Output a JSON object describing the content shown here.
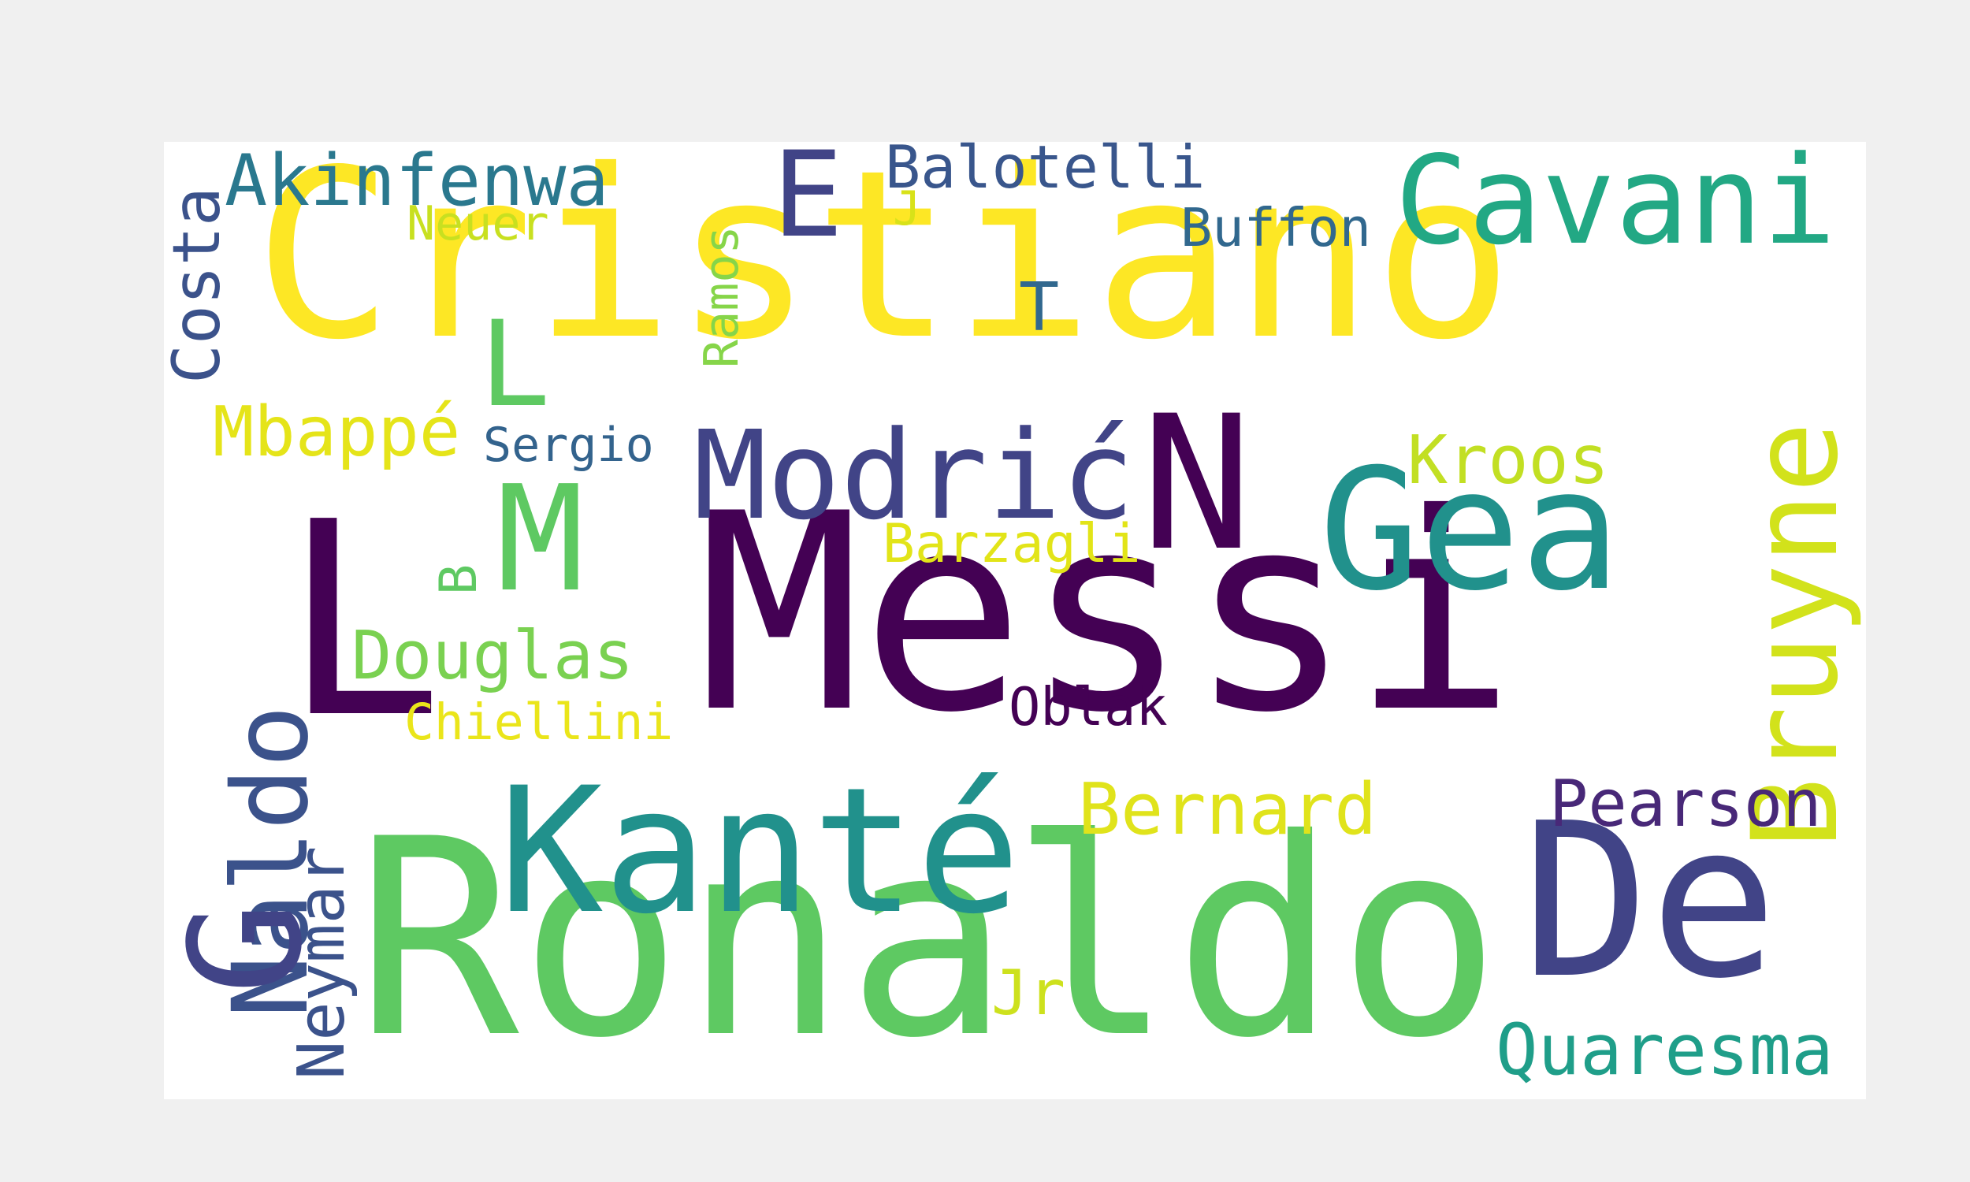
{
  "word_cloud": {
    "words": [
      {
        "text": "Cristiano",
        "color": "#fde725"
      },
      {
        "text": "Messi",
        "color": "#440154"
      },
      {
        "text": "Ronaldo",
        "color": "#5ec962"
      },
      {
        "text": "L",
        "color": "#440154"
      },
      {
        "text": "De",
        "color": "#414487"
      },
      {
        "text": "Kanté",
        "color": "#21918c"
      },
      {
        "text": "Gea",
        "color": "#21918c"
      },
      {
        "text": "Modrić",
        "color": "#414487"
      },
      {
        "text": "N",
        "color": "#440154"
      },
      {
        "text": "M",
        "color": "#5ec962"
      },
      {
        "text": "Cavani",
        "color": "#22a884"
      },
      {
        "text": "Bruyne",
        "color": "#d2e21b"
      },
      {
        "text": "Naldo",
        "color": "#3b528b"
      },
      {
        "text": "G",
        "color": "#414487"
      },
      {
        "text": "E",
        "color": "#414487"
      },
      {
        "text": "L",
        "color": "#5ec962"
      },
      {
        "text": "Akinfenwa",
        "color": "#2a788e"
      },
      {
        "text": "Costa",
        "color": "#3b528b"
      },
      {
        "text": "Neymar",
        "color": "#3b528b"
      },
      {
        "text": "Quaresma",
        "color": "#1f9e89"
      },
      {
        "text": "Bernard",
        "color": "#e0e31b"
      },
      {
        "text": "Pearson",
        "color": "#482878"
      },
      {
        "text": "Douglas",
        "color": "#7ad151"
      },
      {
        "text": "Mbappé",
        "color": "#e5e419"
      },
      {
        "text": "Kroos",
        "color": "#c2df23"
      },
      {
        "text": "Balotelli",
        "color": "#39568c"
      },
      {
        "text": "Buffon",
        "color": "#31688e"
      },
      {
        "text": "Barzagli",
        "color": "#e2e418"
      },
      {
        "text": "Chiellini",
        "color": "#eae51a"
      },
      {
        "text": "Oblak",
        "color": "#440154"
      },
      {
        "text": "Sergio",
        "color": "#33638d"
      },
      {
        "text": "Neuer",
        "color": "#c8e020"
      },
      {
        "text": "Ramos",
        "color": "#86d549"
      },
      {
        "text": "Jr",
        "color": "#cde11d"
      },
      {
        "text": "B",
        "color": "#5ec962"
      },
      {
        "text": "T",
        "color": "#31688e"
      },
      {
        "text": "J",
        "color": "#d8e219"
      }
    ]
  }
}
